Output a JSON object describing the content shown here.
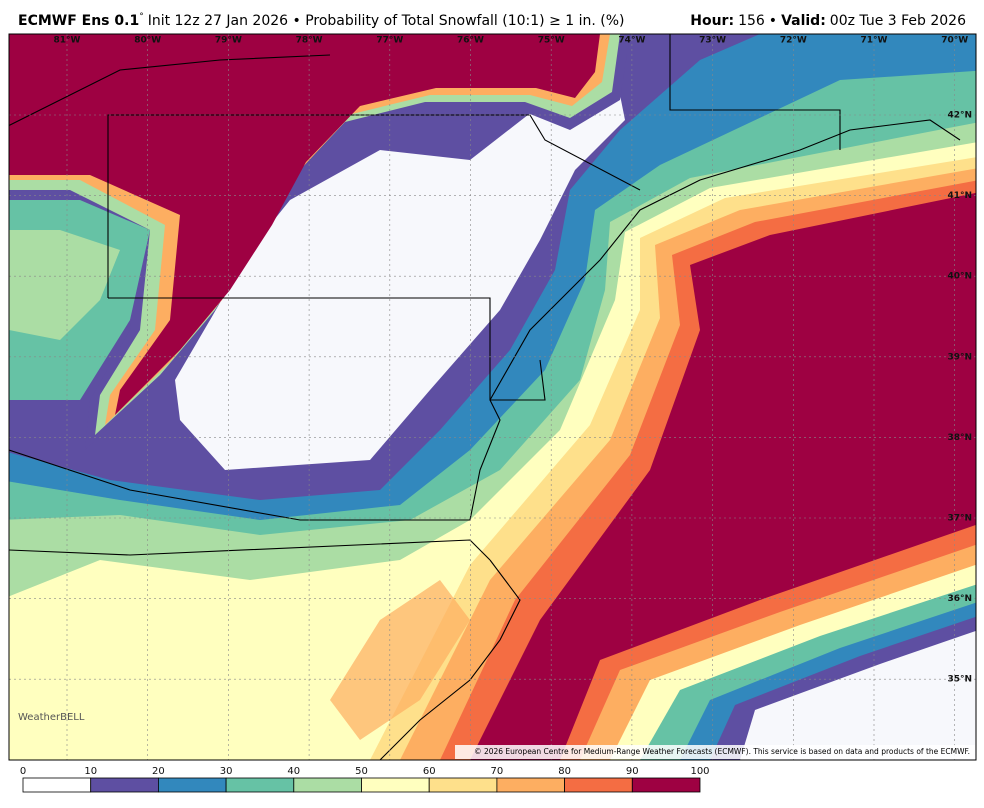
{
  "header": {
    "model": "ECMWF Ens 0.1",
    "degree": "°",
    "description": "Init 12z 27 Jan 2026 • Probability of Total Snowfall (10:1) ≥ 1 in. (%)",
    "hour_label": "Hour:",
    "hour": "156",
    "separator": "•",
    "valid_label": "Valid:",
    "valid": "00z Tue 3 Feb 2026"
  },
  "map": {
    "longitude_labels": [
      "81°W",
      "80°W",
      "79°W",
      "78°W",
      "77°W",
      "76°W",
      "75°W",
      "74°W",
      "73°W",
      "72°W",
      "71°W",
      "70°W"
    ],
    "latitude_labels": [
      "42°N",
      "41°N",
      "40°N",
      "39°N",
      "38°N",
      "37°N",
      "36°N",
      "35°N"
    ],
    "logo": "WeatherBELL",
    "copyright": "© 2026 European Centre for Medium-Range Weather Forecasts (ECMWF). This service is based on data and products of the ECMWF."
  },
  "colorbar": {
    "ticks": [
      0,
      10,
      20,
      30,
      40,
      50,
      60,
      70,
      80,
      90,
      100
    ],
    "colors": [
      "#ffffff",
      "#5e4fa2",
      "#3288bd",
      "#66c2a5",
      "#abdda4",
      "#ffffbf",
      "#fee08b",
      "#fdae61",
      "#f46d43",
      "#9e0142"
    ]
  }
}
